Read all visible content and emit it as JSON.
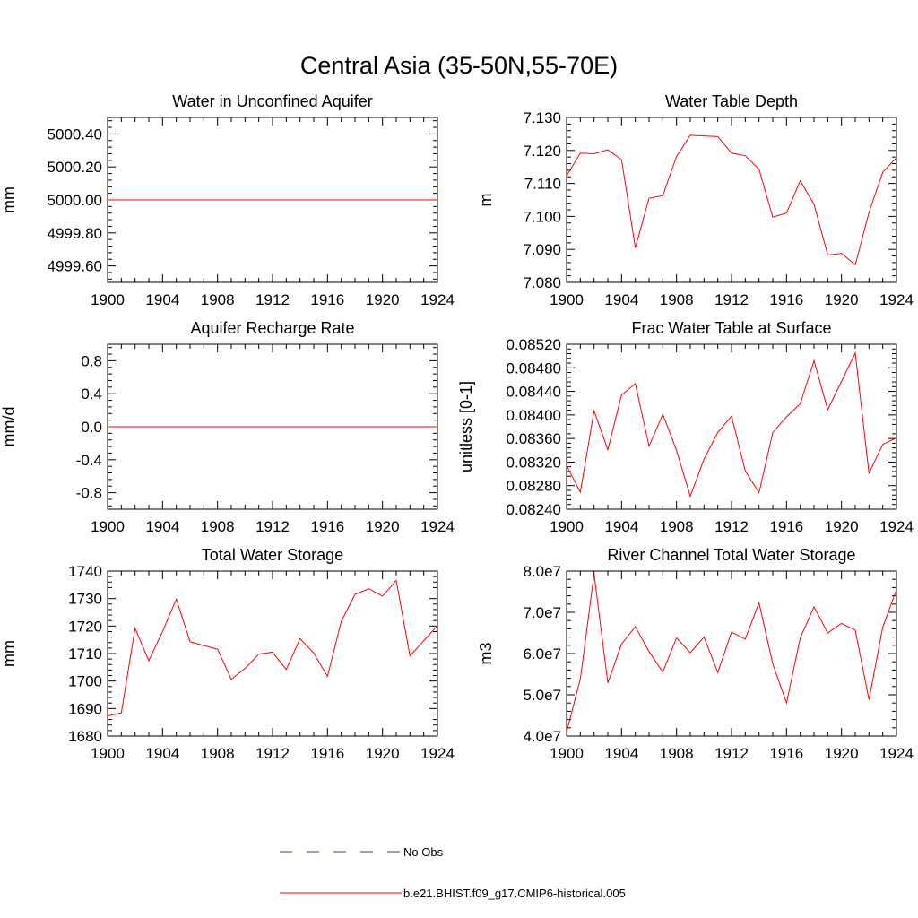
{
  "figure": {
    "title": "Central Asia (35-50N,55-70E)"
  },
  "legend": [
    {
      "label": "No Obs",
      "color": "#3b3bbd",
      "style": "dashed"
    },
    {
      "label": "b.e21.BHIST.f09_g17.CMIP6-historical.005",
      "color": "#ff0000",
      "style": "solid"
    }
  ],
  "chart_data": [
    {
      "type": "line",
      "title": "Water in Unconfined Aquifer",
      "xlabel": "",
      "ylabel": "mm",
      "xlim": [
        1900,
        1924
      ],
      "ylim": [
        4999.5,
        5000.5
      ],
      "xticks": [
        1900,
        1904,
        1908,
        1912,
        1916,
        1920,
        1924
      ],
      "yticks": [
        4999.6,
        4999.8,
        5000.0,
        5000.2,
        5000.4
      ],
      "yticklabels": [
        "4999.60",
        "4999.80",
        "5000.00",
        "5000.20",
        "5000.40"
      ],
      "x": [
        1900,
        1901,
        1902,
        1903,
        1904,
        1905,
        1906,
        1907,
        1908,
        1909,
        1910,
        1911,
        1912,
        1913,
        1914,
        1915,
        1916,
        1917,
        1918,
        1919,
        1920,
        1921,
        1922,
        1923,
        1924
      ],
      "series": [
        {
          "name": "b.e21.BHIST.f09_g17.CMIP6-historical.005",
          "color": "#ff0000",
          "values": [
            5000,
            5000,
            5000,
            5000,
            5000,
            5000,
            5000,
            5000,
            5000,
            5000,
            5000,
            5000,
            5000,
            5000,
            5000,
            5000,
            5000,
            5000,
            5000,
            5000,
            5000,
            5000,
            5000,
            5000,
            5000
          ]
        }
      ]
    },
    {
      "type": "line",
      "title": "Water Table Depth",
      "xlabel": "",
      "ylabel": "m",
      "xlim": [
        1900,
        1924
      ],
      "ylim": [
        7.08,
        7.13
      ],
      "xticks": [
        1900,
        1904,
        1908,
        1912,
        1916,
        1920,
        1924
      ],
      "yticks": [
        7.08,
        7.09,
        7.1,
        7.11,
        7.12,
        7.13
      ],
      "yticklabels": [
        "7.080",
        "7.090",
        "7.100",
        "7.110",
        "7.120",
        "7.130"
      ],
      "x": [
        1900,
        1901,
        1902,
        1903,
        1904,
        1905,
        1906,
        1907,
        1908,
        1909,
        1910,
        1911,
        1912,
        1913,
        1914,
        1915,
        1916,
        1917,
        1918,
        1919,
        1920,
        1921,
        1922,
        1923,
        1924
      ],
      "series": [
        {
          "name": "b.e21.BHIST.f09_g17.CMIP6-historical.005",
          "color": "#ff0000",
          "values": [
            7.1123,
            7.1192,
            7.119,
            7.1202,
            7.1172,
            7.0905,
            7.1055,
            7.1063,
            7.1182,
            7.1246,
            7.1244,
            7.1242,
            7.1192,
            7.1184,
            7.1143,
            7.0998,
            7.101,
            7.1108,
            7.1037,
            7.0883,
            7.0888,
            7.0853,
            7.1012,
            7.1134,
            7.1178
          ]
        }
      ]
    },
    {
      "type": "line",
      "title": "Aquifer Recharge Rate",
      "xlabel": "",
      "ylabel": "mm/d",
      "xlim": [
        1900,
        1924
      ],
      "ylim": [
        -1.0,
        1.0
      ],
      "xticks": [
        1900,
        1904,
        1908,
        1912,
        1916,
        1920,
        1924
      ],
      "yticks": [
        -0.8,
        -0.4,
        0.0,
        0.4,
        0.8
      ],
      "yticklabels": [
        "-0.8",
        "-0.4",
        "0.0",
        "0.4",
        "0.8"
      ],
      "x": [
        1900,
        1901,
        1902,
        1903,
        1904,
        1905,
        1906,
        1907,
        1908,
        1909,
        1910,
        1911,
        1912,
        1913,
        1914,
        1915,
        1916,
        1917,
        1918,
        1919,
        1920,
        1921,
        1922,
        1923,
        1924
      ],
      "series": [
        {
          "name": "b.e21.BHIST.f09_g17.CMIP6-historical.005",
          "color": "#ff0000",
          "values": [
            0,
            0,
            0,
            0,
            0,
            0,
            0,
            0,
            0,
            0,
            0,
            0,
            0,
            0,
            0,
            0,
            0,
            0,
            0,
            0,
            0,
            0,
            0,
            0,
            0
          ]
        }
      ]
    },
    {
      "type": "line",
      "title": "Frac Water Table at Surface",
      "xlabel": "",
      "ylabel": "unitless [0-1]",
      "xlim": [
        1900,
        1924
      ],
      "ylim": [
        0.0824,
        0.0852
      ],
      "xticks": [
        1900,
        1904,
        1908,
        1912,
        1916,
        1920,
        1924
      ],
      "yticks": [
        0.0824,
        0.0828,
        0.0832,
        0.0836,
        0.084,
        0.0844,
        0.0848,
        0.0852
      ],
      "yticklabels": [
        "0.08240",
        "0.08280",
        "0.08320",
        "0.08360",
        "0.08400",
        "0.08440",
        "0.08480",
        "0.08520"
      ],
      "x": [
        1900,
        1901,
        1902,
        1903,
        1904,
        1905,
        1906,
        1907,
        1908,
        1909,
        1910,
        1911,
        1912,
        1913,
        1914,
        1915,
        1916,
        1917,
        1918,
        1919,
        1920,
        1921,
        1922,
        1923,
        1924
      ],
      "series": [
        {
          "name": "b.e21.BHIST.f09_g17.CMIP6-historical.005",
          "color": "#ff0000",
          "values": [
            0.08314,
            0.08269,
            0.08407,
            0.08341,
            0.08434,
            0.08453,
            0.08347,
            0.08401,
            0.0834,
            0.08262,
            0.08325,
            0.0837,
            0.08398,
            0.08305,
            0.08268,
            0.0837,
            0.08397,
            0.08419,
            0.08492,
            0.08409,
            0.08457,
            0.08505,
            0.08301,
            0.0835,
            0.08361
          ]
        }
      ]
    },
    {
      "type": "line",
      "title": "Total Water Storage",
      "xlabel": "",
      "ylabel": "mm",
      "xlim": [
        1900,
        1924
      ],
      "ylim": [
        1680,
        1740
      ],
      "xticks": [
        1900,
        1904,
        1908,
        1912,
        1916,
        1920,
        1924
      ],
      "yticks": [
        1680,
        1690,
        1700,
        1710,
        1720,
        1730,
        1740
      ],
      "yticklabels": [
        "1680",
        "1690",
        "1700",
        "1710",
        "1720",
        "1730",
        "1740"
      ],
      "x": [
        1900,
        1901,
        1902,
        1903,
        1904,
        1905,
        1906,
        1907,
        1908,
        1909,
        1910,
        1911,
        1912,
        1913,
        1914,
        1915,
        1916,
        1917,
        1918,
        1919,
        1920,
        1921,
        1922,
        1923,
        1924
      ],
      "series": [
        {
          "name": "b.e21.BHIST.f09_g17.CMIP6-historical.005",
          "color": "#ff0000",
          "values": [
            1687.3,
            1688.4,
            1719.2,
            1707.4,
            1718.0,
            1729.8,
            1714.3,
            1712.9,
            1711.6,
            1700.6,
            1704.6,
            1709.8,
            1710.5,
            1704.2,
            1715.4,
            1710.2,
            1701.7,
            1721.7,
            1731.5,
            1733.6,
            1730.9,
            1736.6,
            1709.1,
            1714.6,
            1720.2
          ]
        }
      ]
    },
    {
      "type": "line",
      "title": "River Channel Total Water Storage",
      "xlabel": "",
      "ylabel": "m3",
      "xlim": [
        1900,
        1924
      ],
      "ylim": [
        40000000.0,
        80000000.0
      ],
      "xticks": [
        1900,
        1904,
        1908,
        1912,
        1916,
        1920,
        1924
      ],
      "yticks": [
        40000000.0,
        50000000.0,
        60000000.0,
        70000000.0,
        80000000.0
      ],
      "yticklabels": [
        "4.0e7",
        "5.0e7",
        "6.0e7",
        "7.0e7",
        "8.0e7"
      ],
      "x": [
        1900,
        1901,
        1902,
        1903,
        1904,
        1905,
        1906,
        1907,
        1908,
        1909,
        1910,
        1911,
        1912,
        1913,
        1914,
        1915,
        1916,
        1917,
        1918,
        1919,
        1920,
        1921,
        1922,
        1923,
        1924
      ],
      "series": [
        {
          "name": "b.e21.BHIST.f09_g17.CMIP6-historical.005",
          "color": "#ff0000",
          "values": [
            41000000.0,
            53800000.0,
            79300000.0,
            52900000.0,
            62300000.0,
            66500000.0,
            60500000.0,
            55500000.0,
            63800000.0,
            60200000.0,
            64000000.0,
            55400000.0,
            65200000.0,
            63500000.0,
            72300000.0,
            57500000.0,
            48000000.0,
            63800000.0,
            71300000.0,
            65000000.0,
            67300000.0,
            65700000.0,
            48800000.0,
            66400000.0,
            75500000.0
          ]
        }
      ]
    }
  ]
}
